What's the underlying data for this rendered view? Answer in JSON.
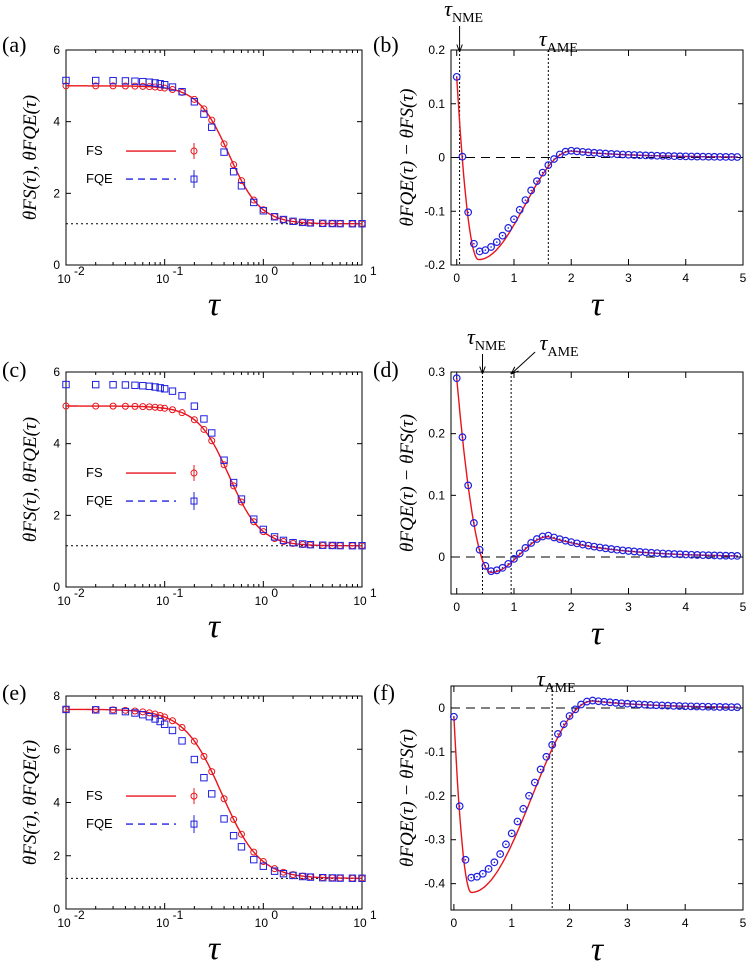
{
  "figure": {
    "description_labels": [
      "(a)",
      "(b)",
      "(c)",
      "(d)",
      "(e)",
      "(f)"
    ]
  },
  "colors": {
    "fs": "#e8141c",
    "fqe": "#2020e0",
    "axis": "#000000"
  },
  "legend": {
    "fs_label": "FS",
    "fqe_label": "FQE"
  },
  "labels": {
    "ylabel_left": "θFS(τ), θFQE(τ)",
    "ylabel_right": "θFQE(τ) − θFS(τ)",
    "xlabel": "τ"
  },
  "chart_data": [
    {
      "id": "a",
      "panel_label": "(a)",
      "type": "line",
      "xscale": "log",
      "xlim": [
        0.01,
        10
      ],
      "ylim": [
        0,
        6
      ],
      "yticks": [
        0,
        2,
        4,
        6
      ],
      "ytick_labels": [
        "0",
        "2",
        "4",
        "6"
      ],
      "xticks": [
        0.01,
        0.1,
        1,
        10
      ],
      "xtick_labels": [
        [
          "10",
          "-2"
        ],
        [
          "10",
          "-1"
        ],
        [
          "10",
          "0"
        ],
        [
          "10",
          "1"
        ]
      ],
      "hline_dotted": 1.15,
      "fs_curve": {
        "top": 5.0,
        "bottom": 1.15,
        "mid": 0.45,
        "width": 0.35
      },
      "fqe_points": {
        "top": 5.15,
        "bottom": 1.15,
        "mid": 0.4,
        "width": 0.38
      },
      "legend": [
        "FS",
        "FQE"
      ],
      "xlabel": "τ",
      "ylabel": "θFS(τ), θFQE(τ)"
    },
    {
      "id": "b",
      "panel_label": "(b)",
      "type": "line",
      "xscale": "linear",
      "xlim": [
        -0.1,
        5
      ],
      "ylim": [
        -0.2,
        0.2
      ],
      "yticks": [
        -0.2,
        -0.1,
        0,
        0.1,
        0.2
      ],
      "ytick_labels": [
        "-0.2",
        "-0.1",
        "0",
        "0.1",
        "0.2"
      ],
      "xticks": [
        0,
        1,
        2,
        3,
        4,
        5
      ],
      "xtick_labels": [
        "0",
        "1",
        "2",
        "3",
        "4",
        "5"
      ],
      "vlines": [
        0.05,
        1.6
      ],
      "annotations": [
        {
          "text": "τ",
          "sub": "NME",
          "x": 0.05,
          "arrow": true
        },
        {
          "text": "τ",
          "sub": "AME",
          "x": 1.6,
          "arrow": false
        }
      ],
      "diff_shape": {
        "start": 0.15,
        "min": -0.19,
        "tmin": 0.38,
        "overshoot": 0.012,
        "tover": 2.0
      },
      "xlabel": "τ",
      "ylabel": "θFQE(τ) − θFS(τ)"
    },
    {
      "id": "c",
      "panel_label": "(c)",
      "type": "line",
      "xscale": "log",
      "xlim": [
        0.01,
        10
      ],
      "ylim": [
        0,
        6
      ],
      "yticks": [
        0,
        2,
        4,
        6
      ],
      "ytick_labels": [
        "0",
        "2",
        "4",
        "6"
      ],
      "xticks": [
        0.01,
        0.1,
        1,
        10
      ],
      "xtick_labels": [
        [
          "10",
          "-2"
        ],
        [
          "10",
          "-1"
        ],
        [
          "10",
          "0"
        ],
        [
          "10",
          "1"
        ]
      ],
      "hline_dotted": 1.15,
      "fs_curve": {
        "top": 5.05,
        "bottom": 1.15,
        "mid": 0.45,
        "width": 0.35
      },
      "fqe_points": {
        "top": 5.65,
        "bottom": 1.15,
        "mid": 0.42,
        "width": 0.38
      },
      "legend": [
        "FS",
        "FQE"
      ],
      "xlabel": "τ",
      "ylabel": "θFS(τ), θFQE(τ)"
    },
    {
      "id": "d",
      "panel_label": "(d)",
      "type": "line",
      "xscale": "linear",
      "xlim": [
        -0.1,
        5
      ],
      "ylim": [
        -0.06,
        0.3
      ],
      "yticks": [
        0,
        0.1,
        0.2,
        0.3
      ],
      "ytick_labels": [
        "0",
        "0.1",
        "0.2",
        "0.3"
      ],
      "xticks": [
        0,
        1,
        2,
        3,
        4,
        5
      ],
      "xtick_labels": [
        "0",
        "1",
        "2",
        "3",
        "4",
        "5"
      ],
      "vlines": [
        0.45,
        0.95
      ],
      "annotations": [
        {
          "text": "τ",
          "sub": "NME",
          "x": 0.45,
          "arrow": true
        },
        {
          "text": "τ",
          "sub": "AME",
          "x": 0.95,
          "arrow": true
        }
      ],
      "diff_shape": {
        "start": 0.29,
        "min": -0.025,
        "tmin": 0.6,
        "overshoot": 0.033,
        "tover": 1.6
      },
      "xlabel": "τ",
      "ylabel": "θFQE(τ) − θFS(τ)"
    },
    {
      "id": "e",
      "panel_label": "(e)",
      "type": "line",
      "xscale": "log",
      "xlim": [
        0.01,
        10
      ],
      "ylim": [
        0,
        8
      ],
      "yticks": [
        0,
        2,
        4,
        6,
        8
      ],
      "ytick_labels": [
        "0",
        "2",
        "4",
        "6",
        "8"
      ],
      "xticks": [
        0.01,
        0.1,
        1,
        10
      ],
      "xtick_labels": [
        [
          "10",
          "-2"
        ],
        [
          "10",
          "-1"
        ],
        [
          "10",
          "0"
        ],
        [
          "10",
          "1"
        ]
      ],
      "hline_dotted": 1.15,
      "fs_curve": {
        "top": 7.5,
        "bottom": 1.15,
        "mid": 0.38,
        "width": 0.42
      },
      "fqe_points": {
        "top": 7.5,
        "bottom": 1.15,
        "mid": 0.3,
        "width": 0.45
      },
      "legend": [
        "FS",
        "FQE"
      ],
      "xlabel": "τ",
      "ylabel": "θFS(τ), θFQE(τ)"
    },
    {
      "id": "f",
      "panel_label": "(f)",
      "type": "line",
      "xscale": "linear",
      "xlim": [
        -0.05,
        5
      ],
      "ylim": [
        -0.46,
        0.05
      ],
      "yticks": [
        -0.4,
        -0.3,
        -0.2,
        -0.1,
        0
      ],
      "ytick_labels": [
        "-0.4",
        "-0.3",
        "-0.2",
        "-0.1",
        "0"
      ],
      "xticks": [
        0,
        1,
        2,
        3,
        4,
        5
      ],
      "xtick_labels": [
        "0",
        "1",
        "2",
        "3",
        "4",
        "5"
      ],
      "vlines": [
        1.7
      ],
      "annotations": [
        {
          "text": "τ",
          "sub": "AME",
          "x": 1.7,
          "arrow": false
        }
      ],
      "diff_shape": {
        "start": -0.02,
        "min": -0.42,
        "tmin": 0.3,
        "overshoot": 0.016,
        "tover": 2.4
      },
      "xlabel": "τ",
      "ylabel": "θFQE(τ) − θFS(τ)"
    }
  ]
}
